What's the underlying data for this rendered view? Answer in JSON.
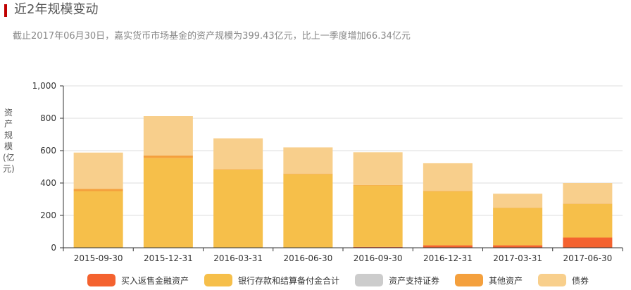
{
  "header": {
    "title": "近2年规模变动",
    "subtitle": "截止2017年06月30日，嘉实货币市场基金的资产规模为399.43亿元，比上一季度增加66.34亿元"
  },
  "colors": {
    "accent": "#c00000",
    "buyback": "#f4622f",
    "bank": "#f6bf4a",
    "abs": "#cccccc",
    "other": "#f4a03d",
    "bond": "#f8cf8c",
    "axis": "#333333",
    "grid": "#dddddd"
  },
  "chart_data": {
    "type": "bar",
    "stacked": true,
    "ylabel": "资产规模(亿元)",
    "ylim": [
      0,
      1000
    ],
    "yticks": [
      "0",
      "200",
      "400",
      "600",
      "800",
      "1,000"
    ],
    "grid": true,
    "legend_position": "bottom",
    "categories": [
      "2015-09-30",
      "2015-12-31",
      "2016-03-31",
      "2016-06-30",
      "2016-09-30",
      "2016-12-31",
      "2017-03-31",
      "2017-06-30"
    ],
    "series": [
      {
        "name": "买入返售金融资产",
        "color": "#f4622f",
        "values": [
          0,
          0,
          0,
          0,
          5,
          15,
          15,
          63
        ]
      },
      {
        "name": "银行存款和结算备付金合计",
        "color": "#f6bf4a",
        "values": [
          350,
          555,
          483,
          455,
          380,
          333,
          232,
          207
        ]
      },
      {
        "name": "资产支持证券",
        "color": "#cccccc",
        "values": [
          0,
          0,
          0,
          0,
          0,
          0,
          0,
          0
        ]
      },
      {
        "name": "其他资产",
        "color": "#f4a03d",
        "values": [
          13,
          15,
          3,
          3,
          3,
          2,
          2,
          2
        ]
      },
      {
        "name": "债券",
        "color": "#f8cf8c",
        "values": [
          225,
          243,
          190,
          162,
          202,
          172,
          85,
          128
        ]
      }
    ]
  }
}
